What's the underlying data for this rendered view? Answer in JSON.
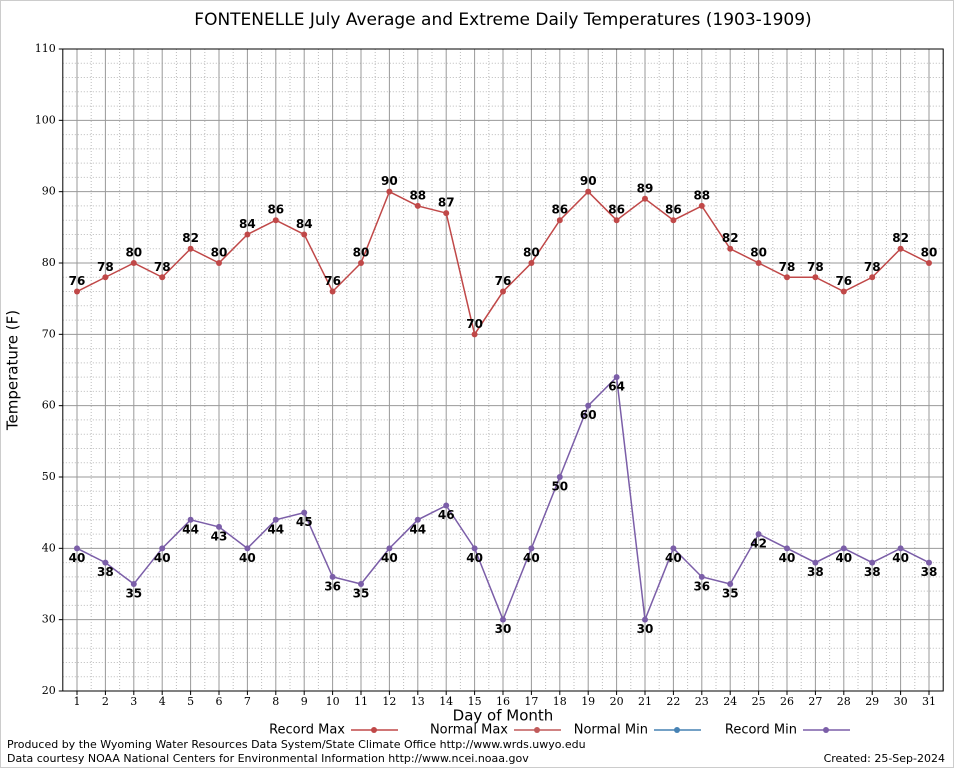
{
  "chart_data": {
    "type": "line",
    "title": "FONTENELLE July Average and Extreme Daily Temperatures (1903-1909)",
    "x_label": "Day of Month",
    "y_label": "Temperature (F)",
    "x": [
      1,
      2,
      3,
      4,
      5,
      6,
      7,
      8,
      9,
      10,
      11,
      12,
      13,
      14,
      15,
      16,
      17,
      18,
      19,
      20,
      21,
      22,
      23,
      24,
      25,
      26,
      27,
      28,
      29,
      30,
      31
    ],
    "xlim": [
      0.5,
      31.5
    ],
    "xticks": [
      1,
      2,
      3,
      4,
      5,
      6,
      7,
      8,
      9,
      10,
      11,
      12,
      13,
      14,
      15,
      16,
      17,
      18,
      19,
      20,
      21,
      22,
      23,
      24,
      25,
      26,
      27,
      28,
      29,
      30,
      31
    ],
    "ylim": [
      20,
      110
    ],
    "yticks": [
      20,
      30,
      40,
      50,
      60,
      70,
      80,
      90,
      100,
      110
    ],
    "grid": true,
    "series": [
      {
        "name": "Record Max",
        "color": "#c04848",
        "label_side": "above",
        "values": [
          76,
          78,
          80,
          78,
          82,
          80,
          84,
          86,
          84,
          76,
          80,
          90,
          88,
          87,
          70,
          76,
          80,
          86,
          90,
          86,
          89,
          86,
          88,
          82,
          80,
          78,
          78,
          76,
          78,
          82,
          80
        ]
      },
      {
        "name": "Normal Max",
        "color": "#c05a5a",
        "values": [
          null,
          null,
          null,
          null,
          null,
          null,
          null,
          null,
          null,
          null,
          null,
          null,
          null,
          null,
          null,
          null,
          null,
          null,
          null,
          null,
          null,
          null,
          null,
          null,
          null,
          null,
          null,
          null,
          null,
          null,
          null
        ]
      },
      {
        "name": "Normal Min",
        "color": "#4682b4",
        "values": [
          null,
          null,
          null,
          null,
          null,
          null,
          null,
          null,
          null,
          null,
          null,
          null,
          null,
          null,
          null,
          null,
          null,
          null,
          null,
          null,
          null,
          null,
          null,
          null,
          null,
          null,
          null,
          null,
          null,
          null,
          null
        ]
      },
      {
        "name": "Record Min",
        "color": "#7b5ea8",
        "label_side": "below",
        "values": [
          40,
          38,
          35,
          40,
          44,
          43,
          40,
          44,
          45,
          36,
          35,
          40,
          44,
          46,
          40,
          30,
          40,
          50,
          60,
          64,
          30,
          40,
          36,
          35,
          42,
          40,
          38,
          40,
          38,
          40,
          38
        ]
      }
    ],
    "footer_left": [
      "Produced by the Wyoming Water Resources Data System/State Climate Office http://www.wrds.uwyo.edu",
      "Data courtesy NOAA National Centers for Environmental Information http://www.ncei.noaa.gov"
    ],
    "footer_right": "Created:  25-Sep-2024"
  }
}
